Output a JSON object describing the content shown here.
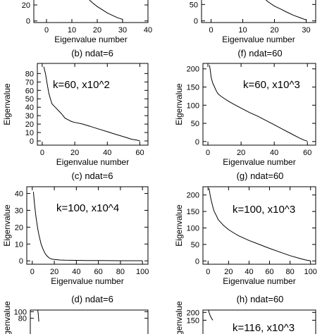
{
  "chart_data": [
    {
      "type": "line",
      "title": "",
      "xlabel": "Eigenvalue number",
      "ylabel": "",
      "xlim": [
        -5,
        40
      ],
      "ylim": [
        -2,
        35
      ],
      "xticks": [
        0,
        10,
        20,
        30,
        40
      ],
      "yticks": [
        0,
        20
      ],
      "annotation": "",
      "series": [
        {
          "x": [
            15,
            16,
            18,
            20,
            22,
            24,
            26,
            28,
            29,
            30
          ],
          "y": [
            31,
            29,
            23,
            18,
            14,
            10,
            7,
            4,
            3,
            2
          ]
        }
      ]
    },
    {
      "type": "line",
      "title": "",
      "xlabel": "Eigenvalue number",
      "ylabel": "",
      "xlim": [
        -3,
        33
      ],
      "ylim": [
        -5,
        85
      ],
      "xticks": [
        0,
        10,
        20,
        30
      ],
      "yticks": [
        0,
        50
      ],
      "annotation": "",
      "series": [
        {
          "x": [
            16,
            18,
            20,
            22,
            24,
            26,
            28,
            30
          ],
          "y": [
            75,
            58,
            45,
            36,
            26,
            17,
            10,
            3
          ]
        }
      ]
    },
    {
      "type": "line",
      "title": "(b) ndat=6",
      "xlabel": "Eigenvalue number",
      "ylabel": "Eigenvalue",
      "xlim": [
        -3,
        65
      ],
      "ylim": [
        -5,
        92
      ],
      "xticks": [
        0,
        20,
        40,
        60
      ],
      "yticks": [
        0,
        10,
        20,
        30,
        40,
        50,
        60,
        70,
        80
      ],
      "annotation": "k=60,  x10^2",
      "series": [
        {
          "x": [
            1,
            2,
            3,
            4,
            5,
            6,
            7,
            8,
            10,
            12,
            14,
            16,
            18,
            20,
            25,
            30,
            35,
            40,
            45,
            50,
            55,
            58,
            60
          ],
          "y": [
            88,
            80,
            68,
            57,
            50,
            44,
            42,
            40,
            36,
            32,
            27,
            25,
            23,
            22,
            20,
            17,
            14,
            11,
            8,
            5,
            2,
            1,
            0
          ]
        }
      ]
    },
    {
      "type": "line",
      "title": "(f) ndat=60",
      "xlabel": "Eigenvalue number",
      "ylabel": "Eigenvalue",
      "xlim": [
        -3,
        65
      ],
      "ylim": [
        -10,
        215
      ],
      "xticks": [
        0,
        20,
        40,
        60
      ],
      "yticks": [
        0,
        50,
        100,
        150,
        200
      ],
      "annotation": "k=60,  x10^3",
      "series": [
        {
          "x": [
            1,
            2,
            3,
            4,
            5,
            6,
            7,
            8,
            10,
            12,
            15,
            20,
            25,
            30,
            35,
            40,
            45,
            50,
            55,
            58,
            60
          ],
          "y": [
            210,
            175,
            160,
            150,
            140,
            132,
            128,
            124,
            118,
            112,
            104,
            92,
            80,
            70,
            58,
            46,
            34,
            22,
            10,
            4,
            1
          ]
        }
      ]
    },
    {
      "type": "line",
      "title": "(c) ndat=6",
      "xlabel": "Eigenvalue number",
      "ylabel": "Eigenvalue",
      "xlim": [
        -5,
        105
      ],
      "ylim": [
        -2,
        44
      ],
      "xticks": [
        0,
        20,
        40,
        60,
        80,
        100
      ],
      "yticks": [
        0,
        10,
        20,
        30,
        40
      ],
      "annotation": "k=100,  x10^4",
      "series": [
        {
          "x": [
            1,
            2,
            3,
            4,
            5,
            6,
            8,
            10,
            12,
            14,
            16,
            18,
            20,
            25,
            30,
            40,
            50,
            60,
            80,
            100
          ],
          "y": [
            41,
            34,
            28,
            23,
            19,
            15.5,
            10,
            6.5,
            4,
            2.5,
            1.5,
            1,
            0.8,
            0.5,
            0.4,
            0.3,
            0.2,
            0.2,
            0.1,
            0.1
          ]
        }
      ]
    },
    {
      "type": "line",
      "title": "(g) ndat=60",
      "xlabel": "Eigenvalue number",
      "ylabel": "Eigenvalue",
      "xlim": [
        -5,
        105
      ],
      "ylim": [
        -10,
        225
      ],
      "xticks": [
        0,
        20,
        40,
        60,
        80,
        100
      ],
      "yticks": [
        0,
        50,
        100,
        150,
        200
      ],
      "annotation": "k=100,  x10^3",
      "series": [
        {
          "x": [
            1,
            2,
            3,
            4,
            5,
            6,
            8,
            10,
            15,
            20,
            25,
            30,
            40,
            50,
            60,
            70,
            80,
            90,
            95,
            100
          ],
          "y": [
            220,
            200,
            185,
            172,
            160,
            150,
            138,
            125,
            108,
            95,
            85,
            76,
            62,
            50,
            38,
            27,
            16,
            7,
            3,
            0
          ]
        }
      ]
    },
    {
      "type": "line",
      "title": "(d) ndat=6",
      "xlabel": "",
      "ylabel": "Eigenvalue",
      "xlim": [
        -5,
        105
      ],
      "ylim": [
        -2,
        105
      ],
      "xticks": [],
      "yticks": [
        80,
        100
      ],
      "annotation": "",
      "series": [
        {
          "x": [
            2,
            2.5,
            3
          ],
          "y": [
            105,
            90,
            70
          ]
        }
      ]
    },
    {
      "type": "line",
      "title": "(h) ndat=60",
      "xlabel": "",
      "ylabel": "Eigenvalue",
      "xlim": [
        -5,
        120
      ],
      "ylim": [
        -10,
        215
      ],
      "xticks": [],
      "yticks": [
        150,
        200
      ],
      "annotation": "k=116,  x10^3",
      "series": [
        {
          "x": [
            1,
            2,
            3,
            4,
            5,
            6
          ],
          "y": [
            215,
            195,
            180,
            168,
            158,
            150
          ]
        }
      ]
    }
  ]
}
